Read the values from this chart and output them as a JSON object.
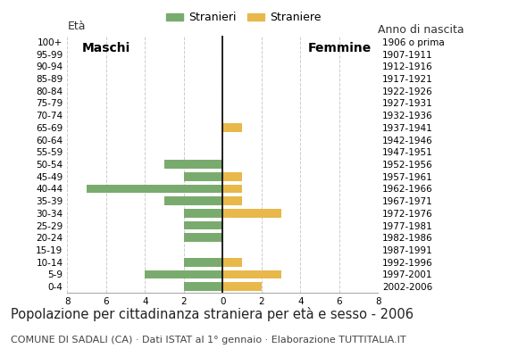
{
  "age_groups": [
    "100+",
    "95-99",
    "90-94",
    "85-89",
    "80-84",
    "75-79",
    "70-74",
    "65-69",
    "60-64",
    "55-59",
    "50-54",
    "45-49",
    "40-44",
    "35-39",
    "30-34",
    "25-29",
    "20-24",
    "15-19",
    "10-14",
    "5-9",
    "0-4"
  ],
  "birth_years": [
    "1906 o prima",
    "1907-1911",
    "1912-1916",
    "1917-1921",
    "1922-1926",
    "1927-1931",
    "1932-1936",
    "1937-1941",
    "1942-1946",
    "1947-1951",
    "1952-1956",
    "1957-1961",
    "1962-1966",
    "1967-1971",
    "1972-1976",
    "1977-1981",
    "1982-1986",
    "1987-1991",
    "1992-1996",
    "1997-2001",
    "2002-2006"
  ],
  "males": [
    0,
    0,
    0,
    0,
    0,
    0,
    0,
    0,
    0,
    0,
    3,
    2,
    7,
    3,
    2,
    2,
    2,
    0,
    2,
    4,
    2
  ],
  "females": [
    0,
    0,
    0,
    0,
    0,
    0,
    0,
    1,
    0,
    0,
    0,
    1,
    1,
    1,
    3,
    0,
    0,
    0,
    1,
    3,
    2
  ],
  "male_color": "#7aab6e",
  "female_color": "#e8b84b",
  "grid_color": "#cccccc",
  "axis_line_color": "#000000",
  "xlim": 8,
  "legend_stranieri": "Stranieri",
  "legend_straniere": "Straniere",
  "label_eta": "Età",
  "label_anno": "Anno di nascita",
  "label_maschi": "Maschi",
  "label_femmine": "Femmine",
  "title": "Popolazione per cittadinanza straniera per età e sesso - 2006",
  "subtitle": "COMUNE DI SADALI (CA) · Dati ISTAT al 1° gennaio · Elaborazione TUTTITALIA.IT",
  "title_fontsize": 10.5,
  "subtitle_fontsize": 8,
  "tick_fontsize": 7.5,
  "label_fontsize": 9,
  "background_color": "#ffffff"
}
